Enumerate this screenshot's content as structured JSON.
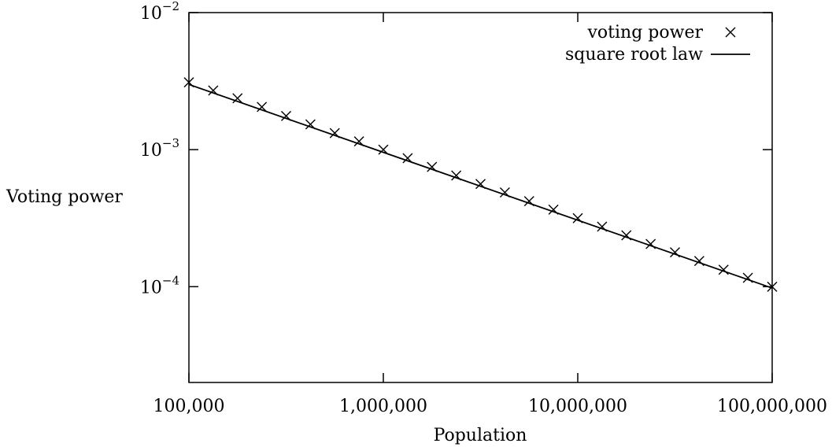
{
  "chart_data": {
    "type": "line",
    "xlabel": "Population",
    "ylabel": "Voting power",
    "x_scale": "log",
    "y_scale": "log",
    "xlim": [
      100000,
      100000000
    ],
    "ylim": [
      2e-05,
      0.01
    ],
    "x_ticks": [
      {
        "value": 100000,
        "label": "100,000"
      },
      {
        "value": 1000000,
        "label": "1,000,000"
      },
      {
        "value": 10000000,
        "label": "10,000,000"
      },
      {
        "value": 100000000,
        "label": "100,000,000"
      }
    ],
    "y_ticks": [
      {
        "value": 0.01,
        "base": "10",
        "exp": "−2"
      },
      {
        "value": 0.001,
        "base": "10",
        "exp": "−3"
      },
      {
        "value": 0.0001,
        "base": "10",
        "exp": "−4"
      }
    ],
    "grid": false,
    "legend_position": "top-right",
    "series": [
      {
        "name": "voting power",
        "marker": "x",
        "line": false,
        "color": "#000000",
        "points": [
          [
            100000,
            0.0031
          ],
          [
            133352,
            0.0027
          ],
          [
            177828,
            0.00237
          ],
          [
            237137,
            0.00205
          ],
          [
            316228,
            0.00176
          ],
          [
            421697,
            0.00153
          ],
          [
            562341,
            0.00132
          ],
          [
            749894,
            0.00115
          ],
          [
            1000000,
            0.001
          ],
          [
            1333521,
            0.000866
          ],
          [
            1778279,
            0.000748
          ],
          [
            2371374,
            0.000648
          ],
          [
            3162278,
            0.000562
          ],
          [
            4216965,
            0.000487
          ],
          [
            5623413,
            0.000421
          ],
          [
            7498942,
            0.000365
          ],
          [
            10000000,
            0.000316
          ],
          [
            13335214,
            0.000274
          ],
          [
            17782794,
            0.000237
          ],
          [
            23713737,
            0.000205
          ],
          [
            31622777,
            0.000178
          ],
          [
            42169650,
            0.000154
          ],
          [
            56234133,
            0.000133
          ],
          [
            74989421,
            0.000116
          ],
          [
            100000000,
            9.99e-05
          ]
        ]
      },
      {
        "name": "square root law",
        "marker": "none",
        "line": true,
        "color": "#000000",
        "points": [
          [
            100000,
            0.00299
          ],
          [
            100000000,
            9.77e-05
          ]
        ]
      }
    ]
  }
}
